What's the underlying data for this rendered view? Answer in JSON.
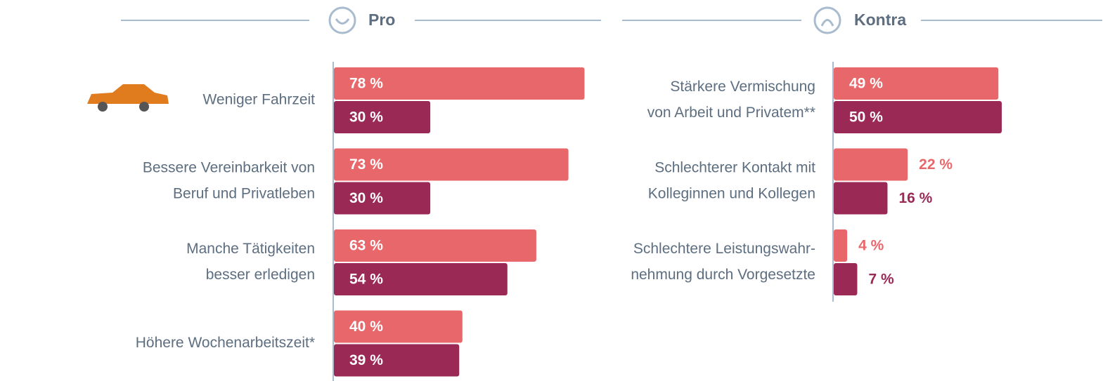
{
  "chart_data": [
    {
      "type": "bar",
      "title": "Pro",
      "categories": [
        [
          "Weniger Fahrzeit"
        ],
        [
          "Bessere Vereinbarkeit von",
          "Beruf und Privatleben"
        ],
        [
          "Manche Tätigkeiten",
          "besser erledigen"
        ],
        [
          "Höhere Wochenarbeitszeit*"
        ]
      ],
      "series": [
        {
          "color": "#e8676b",
          "values": [
            78,
            73,
            63,
            40
          ],
          "value_labels": [
            "78 %",
            "73 %",
            "63 %",
            "40 %"
          ]
        },
        {
          "color": "#9a2955",
          "values": [
            30,
            30,
            54,
            39
          ],
          "value_labels": [
            "30 %",
            "30 %",
            "54 %",
            "39 %"
          ]
        }
      ]
    },
    {
      "type": "bar",
      "title": "Kontra",
      "categories": [
        [
          "Stärkere Vermischung",
          "von Arbeit und Privatem**"
        ],
        [
          "Schlechterer Kontakt mit",
          "Kolleginnen und Kollegen"
        ],
        [
          "Schlechtere Leistungswahr-",
          "nehmung durch Vorgesetzte"
        ]
      ],
      "series": [
        {
          "color": "#e8676b",
          "values": [
            49,
            22,
            4
          ],
          "value_labels": [
            "49 %",
            "22 %",
            "4 %"
          ]
        },
        {
          "color": "#9a2955",
          "values": [
            50,
            16,
            7
          ],
          "value_labels": [
            "50 %",
            "16 %",
            "7 %"
          ]
        }
      ]
    }
  ]
}
